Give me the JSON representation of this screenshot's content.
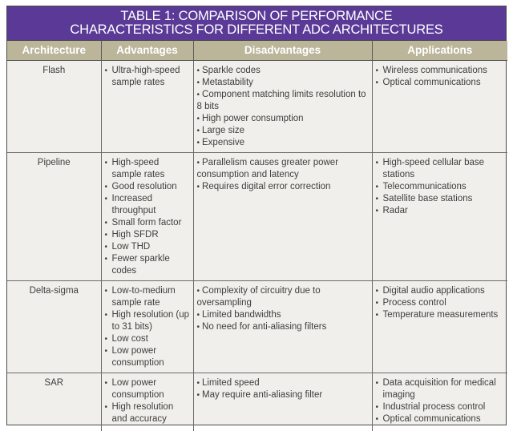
{
  "title": {
    "line1": "TABLE 1: COMPARISON OF PERFORMANCE",
    "line2": "CHARACTERISTICS FOR DIFFERENT ADC ARCHITECTURES"
  },
  "colors": {
    "title_bg": "#5a3a96",
    "header_bg": "#bbb59a",
    "body_bg": "#f0efeb"
  },
  "headers": [
    "Architecture",
    "Advantages",
    "Disadvantages",
    "Applications"
  ],
  "rows": [
    {
      "architecture": "Flash",
      "advantages": [
        "Ultra-high-speed sample rates"
      ],
      "disadvantages": [
        "Sparkle codes",
        "Metastability",
        "Component matching limits resolution to 8 bits",
        "High power consumption",
        "Large size",
        "Expensive"
      ],
      "applications": [
        "Wireless communications",
        "Optical communications"
      ]
    },
    {
      "architecture": "Pipeline",
      "advantages": [
        "High-speed sample rates",
        "Good resolution",
        "Increased throughput",
        "Small form factor",
        "High SFDR",
        "Low THD",
        "Fewer sparkle codes"
      ],
      "disadvantages": [
        "Parallelism causes greater power consumption and latency",
        "Requires digital error correction"
      ],
      "applications": [
        "High-speed cellular base stations",
        "Telecommunications",
        "Satellite base stations",
        "Radar"
      ]
    },
    {
      "architecture": "Delta-sigma",
      "advantages": [
        "Low-to-medium sample rate",
        "High resolution (up to 31 bits)",
        "Low cost",
        "Low power consumption"
      ],
      "disadvantages": [
        "Complexity of circuitry due to oversampling",
        "Limited bandwidths",
        "No need for anti-aliasing filters"
      ],
      "applications": [
        "Digital audio applications",
        "Process control",
        "Temperature measurements"
      ]
    },
    {
      "architecture": "SAR",
      "advantages": [
        "Low power consumption",
        "High resolution and accuracy"
      ],
      "disadvantages": [
        "Limited speed",
        "May require anti-aliasing filter"
      ],
      "applications": [
        "Data acquisition for medical imaging",
        "Industrial process control",
        "Optical communications"
      ]
    }
  ]
}
